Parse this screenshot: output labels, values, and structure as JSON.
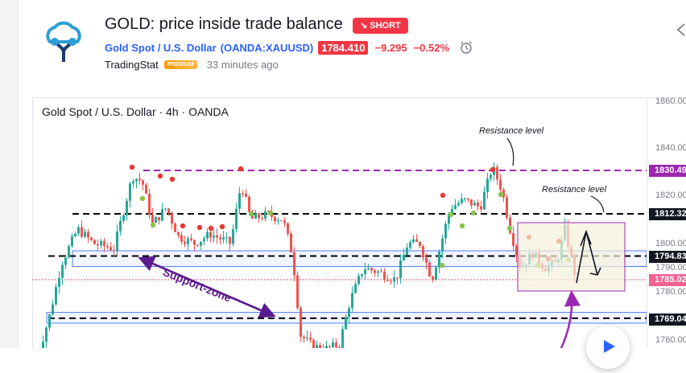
{
  "idea": {
    "title": "GOLD: price inside trade balance",
    "direction_badge": "↘ SHORT",
    "symbol_name": "Gold Spot / U.S. Dollar",
    "symbol_ticker": "(OANDA:XAUUSD)",
    "price": "1784.410",
    "change": "−9.295",
    "change_pct": "−0.52%",
    "author": "TradingStat",
    "author_badge": "PREMIUM",
    "time_ago": "33 minutes ago"
  },
  "chart": {
    "header": "Gold Spot / U.S. Dollar · 4h · OANDA",
    "ticks": [
      "1860.00",
      "1840.00",
      "1820.00",
      "1800.00",
      "1790.00",
      "1780.00",
      "1760.00"
    ],
    "price_labels": [
      "1830.49",
      "1812.32",
      "1794.83",
      "1785.02",
      "1769.04"
    ],
    "annotations": {
      "resistance_1": "Resistance level",
      "resistance_2": "Resistance level",
      "support_zone": "Support-zone"
    }
  },
  "chart_data": {
    "type": "candlestick",
    "title": "Gold Spot / U.S. Dollar · 4h · OANDA",
    "y_ticks": [
      1860,
      1840,
      1820,
      1800,
      1790,
      1780,
      1760
    ],
    "levels": [
      {
        "label": "1830.49",
        "value": 1830.49,
        "style": "dashed",
        "color": "#9c27b0"
      },
      {
        "label": "1812.32",
        "value": 1812.32,
        "style": "dashed",
        "color": "#000000"
      },
      {
        "label": "1794.83",
        "value": 1794.83,
        "style": "dashed",
        "color": "#000000"
      },
      {
        "label": "1785.02",
        "value": 1785.02,
        "style": "dotted",
        "color": "#f23645"
      },
      {
        "label": "1769.04",
        "value": 1769.04,
        "style": "dashed",
        "color": "#000000"
      }
    ],
    "last_price": 1785.02
  },
  "colors": {
    "up": "#26a69a",
    "down": "#ef5350",
    "accent_red": "#f23645",
    "link_blue": "#2962ff",
    "purple": "#9c27b0",
    "support_text": "#5b1b8f"
  }
}
